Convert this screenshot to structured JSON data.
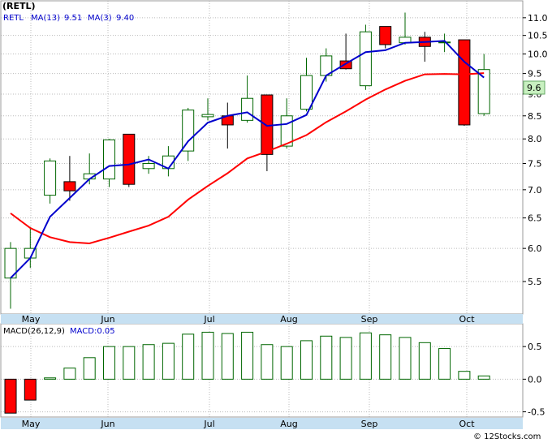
{
  "chart_data": [
    {
      "type": "candlestick",
      "title": "(RETL)",
      "symbol": "RETL",
      "legend": [
        {
          "label": "MA(13)",
          "value": "9.51",
          "color": "#ff0000"
        },
        {
          "label": "MA(3)",
          "value": "9.40",
          "color": "#0000cc"
        }
      ],
      "last_price_label": "9.6",
      "y_scale": "log",
      "ylim": [
        5.05,
        11.5
      ],
      "y_ticks": [
        "11.0",
        "10.5",
        "10.0",
        "9.5",
        "9.0",
        "8.5",
        "8.0",
        "7.5",
        "7.0",
        "6.5",
        "6.0",
        "5.5"
      ],
      "months": [
        "May",
        "Jun",
        "Jul",
        "Aug",
        "Sep",
        "Oct"
      ],
      "grid": true,
      "up_color": "#006600",
      "down_color": "#ff0000",
      "candles": [
        {
          "o": 5.55,
          "h": 6.1,
          "l": 5.12,
          "c": 6.0
        },
        {
          "o": 5.85,
          "h": 6.35,
          "l": 5.7,
          "c": 6.0
        },
        {
          "o": 6.9,
          "h": 7.6,
          "l": 6.75,
          "c": 7.55
        },
        {
          "o": 7.15,
          "h": 7.65,
          "l": 6.8,
          "c": 6.98
        },
        {
          "o": 7.2,
          "h": 7.7,
          "l": 7.1,
          "c": 7.3
        },
        {
          "o": 7.2,
          "h": 8.0,
          "l": 7.05,
          "c": 7.98
        },
        {
          "o": 8.1,
          "h": 8.1,
          "l": 7.05,
          "c": 7.1
        },
        {
          "o": 7.4,
          "h": 7.65,
          "l": 7.3,
          "c": 7.5
        },
        {
          "o": 7.4,
          "h": 7.85,
          "l": 7.25,
          "c": 7.65
        },
        {
          "o": 7.75,
          "h": 8.68,
          "l": 7.55,
          "c": 8.63
        },
        {
          "o": 8.48,
          "h": 8.9,
          "l": 8.4,
          "c": 8.53
        },
        {
          "o": 8.5,
          "h": 8.8,
          "l": 7.8,
          "c": 8.3
        },
        {
          "o": 8.4,
          "h": 9.45,
          "l": 8.35,
          "c": 8.9
        },
        {
          "o": 8.98,
          "h": 8.98,
          "l": 7.35,
          "c": 7.68
        },
        {
          "o": 7.85,
          "h": 8.9,
          "l": 7.8,
          "c": 8.5
        },
        {
          "o": 8.65,
          "h": 9.9,
          "l": 8.6,
          "c": 9.45
        },
        {
          "o": 9.45,
          "h": 10.15,
          "l": 9.3,
          "c": 9.95
        },
        {
          "o": 9.82,
          "h": 10.55,
          "l": 9.6,
          "c": 9.62
        },
        {
          "o": 9.2,
          "h": 10.8,
          "l": 9.1,
          "c": 10.6
        },
        {
          "o": 10.75,
          "h": 10.75,
          "l": 10.15,
          "c": 10.25
        },
        {
          "o": 10.3,
          "h": 11.15,
          "l": 10.25,
          "c": 10.45
        },
        {
          "o": 10.45,
          "h": 10.6,
          "l": 9.8,
          "c": 10.2
        },
        {
          "o": 10.3,
          "h": 10.55,
          "l": 10.05,
          "c": 10.32
        },
        {
          "o": 10.38,
          "h": 10.38,
          "l": 8.28,
          "c": 8.3
        },
        {
          "o": 8.55,
          "h": 10.0,
          "l": 8.5,
          "c": 9.6
        }
      ],
      "ma13": [
        6.58,
        6.33,
        6.18,
        6.1,
        6.08,
        6.17,
        6.27,
        6.37,
        6.52,
        6.82,
        7.07,
        7.31,
        7.6,
        7.74,
        7.9,
        8.08,
        8.36,
        8.6,
        8.87,
        9.11,
        9.32,
        9.48,
        9.49,
        9.48,
        9.51
      ],
      "ma3": [
        5.55,
        5.85,
        6.52,
        6.85,
        7.2,
        7.45,
        7.48,
        7.58,
        7.4,
        7.95,
        8.35,
        8.5,
        8.58,
        8.28,
        8.32,
        8.52,
        9.45,
        9.75,
        10.05,
        10.1,
        10.3,
        10.32,
        10.35,
        9.8,
        9.4
      ]
    },
    {
      "type": "bar",
      "label": "MACD(26,12,9)",
      "value_label": "MACD:0.05",
      "ylim": [
        -0.58,
        0.85
      ],
      "y_ticks": [
        "0.5",
        "0.0",
        "-0.5"
      ],
      "months": [
        "May",
        "Jun",
        "Jul",
        "Aug",
        "Sep",
        "Oct"
      ],
      "values": [
        -0.52,
        -0.32,
        0.02,
        0.17,
        0.33,
        0.5,
        0.5,
        0.53,
        0.55,
        0.69,
        0.72,
        0.7,
        0.72,
        0.53,
        0.5,
        0.59,
        0.66,
        0.64,
        0.71,
        0.68,
        0.64,
        0.56,
        0.47,
        0.12,
        0.05
      ],
      "up_color": "#006600",
      "down_color": "#ff0000"
    }
  ],
  "footer": {
    "copyright": "© 12Stocks.com"
  }
}
